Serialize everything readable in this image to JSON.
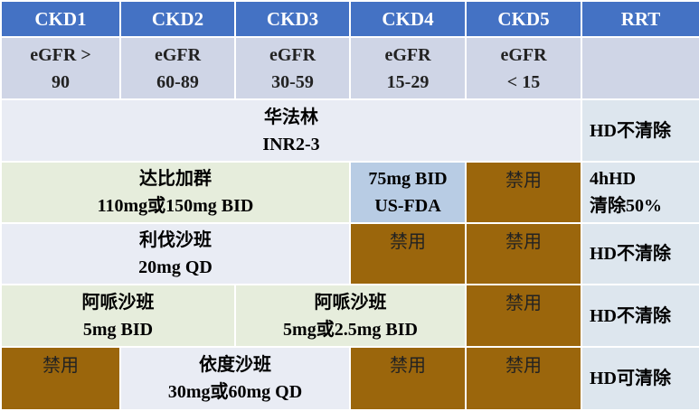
{
  "table": {
    "header": [
      "CKD1",
      "CKD2",
      "CKD3",
      "CKD4",
      "CKD5",
      "RRT"
    ],
    "egfr": [
      [
        "eGFR >",
        "90"
      ],
      [
        "eGFR",
        "60-89"
      ],
      [
        "eGFR",
        "30-59"
      ],
      [
        "eGFR",
        "15-29"
      ],
      [
        "eGFR",
        "< 15"
      ]
    ],
    "rows": [
      [
        [
          "华法林",
          "INR2-3"
        ],
        [
          "HD不清除"
        ]
      ],
      [
        [
          "达比加群",
          "110mg或150mg BID"
        ],
        [
          "75mg BID",
          "US-FDA"
        ],
        [
          "禁用"
        ],
        [
          "4hHD",
          "清除50%"
        ]
      ],
      [
        [
          "利伐沙班",
          "20mg QD"
        ],
        [
          "禁用"
        ],
        [
          "禁用"
        ],
        [
          "HD不清除"
        ]
      ],
      [
        [
          "阿哌沙班",
          "5mg BID"
        ],
        [
          "阿哌沙班",
          "5mg或2.5mg BID"
        ],
        [
          "禁用"
        ],
        [
          "HD不清除"
        ]
      ],
      [
        [
          "禁用"
        ],
        [
          "依度沙班",
          "30mg或60mg QD"
        ],
        [
          "禁用"
        ],
        [
          "禁用"
        ],
        [
          "HD可清除"
        ]
      ]
    ]
  }
}
